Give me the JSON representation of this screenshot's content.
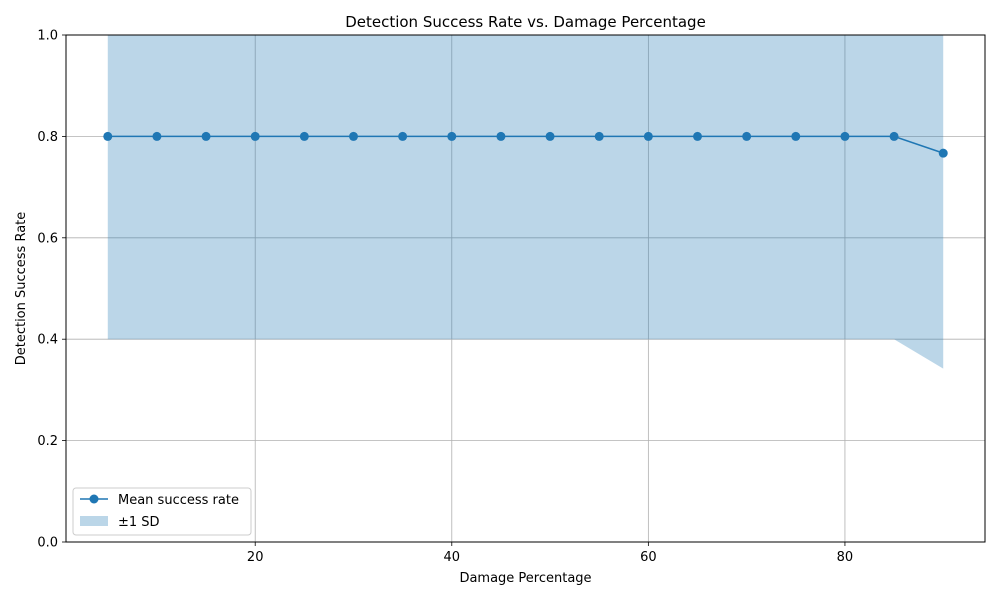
{
  "chart_data": {
    "type": "line",
    "title": "Detection Success Rate vs. Damage Percentage",
    "xlabel": "Damage Percentage",
    "ylabel": "Detection Success Rate",
    "xlim": [
      0.75,
      94.25
    ],
    "ylim": [
      0,
      1
    ],
    "xticks": [
      20,
      40,
      60,
      80
    ],
    "yticks": [
      0.0,
      0.2,
      0.4,
      0.6,
      0.8,
      1.0
    ],
    "xtick_labels": [
      "20",
      "40",
      "60",
      "80"
    ],
    "ytick_labels": [
      "0.0",
      "0.2",
      "0.4",
      "0.6",
      "0.8",
      "1.0"
    ],
    "grid": true,
    "legend_position": "lower-left",
    "x": [
      5,
      10,
      15,
      20,
      25,
      30,
      35,
      40,
      45,
      50,
      55,
      60,
      65,
      70,
      75,
      80,
      85,
      90
    ],
    "series": [
      {
        "name": "Mean success rate",
        "kind": "line-marker",
        "color": "#1f77b4",
        "values": [
          0.8,
          0.8,
          0.8,
          0.8,
          0.8,
          0.8,
          0.8,
          0.8,
          0.8,
          0.8,
          0.8,
          0.8,
          0.8,
          0.8,
          0.8,
          0.8,
          0.8,
          0.767
        ]
      },
      {
        "name": "±1 SD",
        "kind": "band",
        "color": "#1f77b4",
        "opacity": 0.3,
        "lower": [
          0.4,
          0.4,
          0.4,
          0.4,
          0.4,
          0.4,
          0.4,
          0.4,
          0.4,
          0.4,
          0.4,
          0.4,
          0.4,
          0.4,
          0.4,
          0.4,
          0.4,
          0.342
        ],
        "upper": [
          1.2,
          1.2,
          1.2,
          1.2,
          1.2,
          1.2,
          1.2,
          1.2,
          1.2,
          1.2,
          1.2,
          1.2,
          1.2,
          1.2,
          1.2,
          1.2,
          1.2,
          1.192
        ]
      }
    ]
  }
}
